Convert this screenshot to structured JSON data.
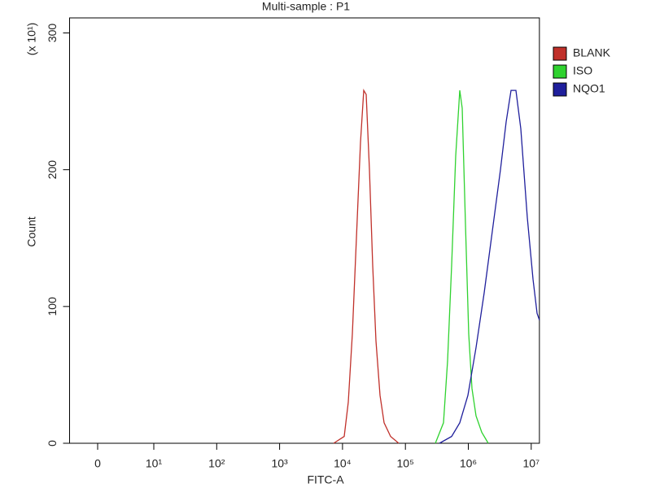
{
  "chart_data": {
    "type": "line",
    "title": "Multi-sample : P1",
    "x_label": "FITC-A",
    "y_label": "Count",
    "y_multiplier": "(x 10¹)",
    "x_scale": "log",
    "xlim": [
      -5,
      13500000
    ],
    "xticks": [
      0,
      {
        "value": 10,
        "label": "10¹"
      },
      {
        "value": 100,
        "label": "10²"
      },
      {
        "value": 1000,
        "label": "10³"
      },
      {
        "value": 10000,
        "label": "10⁴"
      },
      {
        "value": 100000,
        "label": "10⁵"
      },
      {
        "value": 1000000,
        "label": "10⁶"
      },
      {
        "value": 10000000,
        "label": "10⁷"
      }
    ],
    "ylim": [
      0,
      311
    ],
    "yticks": [
      0,
      100,
      200,
      300
    ],
    "legend": "right",
    "series": [
      {
        "name": "BLANK",
        "color": "#c0302a",
        "x": [
          7230,
          10640,
          12360,
          14350,
          16640,
          19320,
          21770,
          23770,
          26800,
          30200,
          34040,
          39480,
          45810,
          58210,
          78340
        ],
        "values": [
          0,
          5,
          30,
          80,
          150,
          220,
          258,
          255,
          200,
          130,
          75,
          35,
          15,
          5,
          0
        ]
      },
      {
        "name": "ISO",
        "color": "#2fd22f",
        "x": [
          299000,
          402700,
          467700,
          543200,
          630900,
          731400,
          799800,
          901600,
          1014000,
          1143000,
          1327000,
          1633000,
          2075000
        ],
        "values": [
          0,
          15,
          60,
          130,
          210,
          258,
          245,
          160,
          80,
          40,
          20,
          8,
          0
        ]
      },
      {
        "name": "NQO1",
        "color": "#1f1f9c",
        "x": [
          347500,
          543200,
          731400,
          985700,
          1327000,
          1786000,
          2410000,
          3243000,
          3998000,
          4775000,
          5715000,
          6823000,
          8670000,
          10670000,
          12390000,
          13500000
        ],
        "values": [
          0,
          5,
          15,
          35,
          70,
          110,
          155,
          200,
          235,
          258,
          258,
          230,
          165,
          120,
          95,
          90
        ]
      }
    ]
  }
}
